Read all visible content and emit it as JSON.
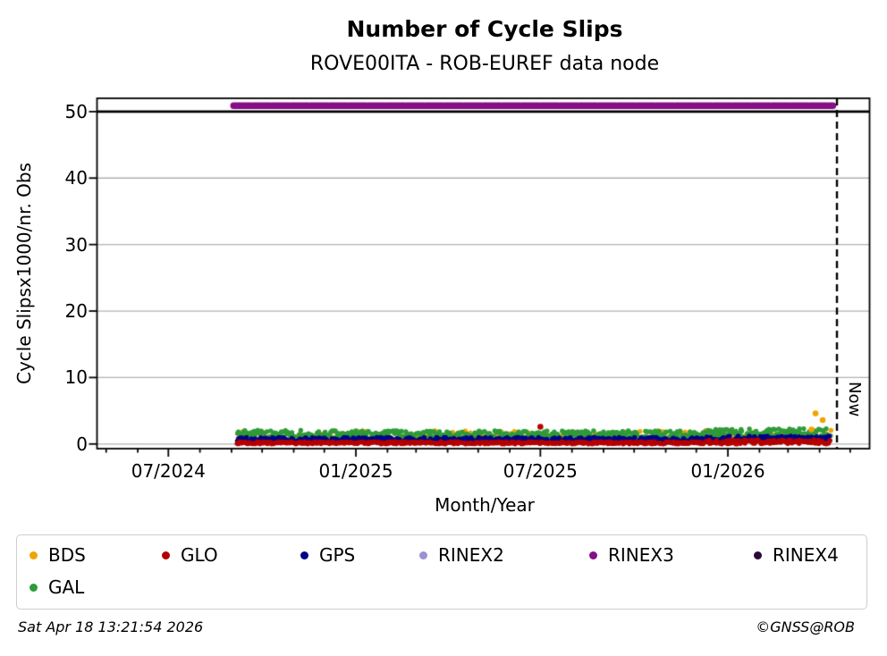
{
  "title": "Number of Cycle Slips",
  "subtitle": "ROVE00ITA - ROB-EUREF data node",
  "footer": {
    "timestamp": "Sat Apr 18 13:21:54 2026",
    "credit": "©GNSS@ROB"
  },
  "chart_data": {
    "type": "scatter",
    "title": "Number of Cycle Slips",
    "subtitle": "ROVE00ITA - ROB-EUREF data node",
    "xlabel": "Month/Year",
    "ylabel": "Cycle Slipsx1000/nr. Obs",
    "ylim": [
      -0.7,
      52
    ],
    "yticks": [
      0,
      10,
      20,
      30,
      40,
      50
    ],
    "xtick_dates": [
      "2024-07-01",
      "2025-01-01",
      "2025-07-01",
      "2026-01-01"
    ],
    "xtick_labels": [
      "07/2024",
      "01/2025",
      "07/2025",
      "01/2026"
    ],
    "x_range": {
      "start": "2024-04-22",
      "end": "2026-05-20"
    },
    "grid": "horizontal",
    "grid_color": "#b0b0b0",
    "threshold_line": {
      "value": 50,
      "color": "#000000"
    },
    "now_line": {
      "date": "2026-04-18",
      "label": "Now",
      "color": "#000000",
      "style": "dashed"
    },
    "legend_position": "bottom",
    "series": [
      {
        "name": "BDS",
        "color": "#efa400",
        "render": "band",
        "segments": [
          {
            "start": "2024-09-07",
            "end": "2025-12-10",
            "min": 0.9,
            "max": 2.0,
            "density": "sparse"
          },
          {
            "start": "2025-12-10",
            "end": "2026-04-12",
            "min": 0.9,
            "max": 2.1,
            "density": "sparse"
          }
        ],
        "outliers": [
          {
            "date": "2026-03-28",
            "value": 4.6
          },
          {
            "date": "2026-04-04",
            "value": 3.6
          },
          {
            "date": "2026-03-24",
            "value": 2.2
          }
        ]
      },
      {
        "name": "GLO",
        "color": "#b50000",
        "render": "band",
        "segments": [
          {
            "start": "2024-09-07",
            "end": "2025-12-10",
            "min": 0.0,
            "max": 0.35
          },
          {
            "start": "2025-12-10",
            "end": "2026-04-12",
            "min": 0.0,
            "max": 0.65
          }
        ],
        "outliers": [
          {
            "date": "2025-07-01",
            "value": 2.6
          }
        ]
      },
      {
        "name": "GPS",
        "color": "#000088",
        "render": "band",
        "segments": [
          {
            "start": "2024-09-07",
            "end": "2025-12-10",
            "min": 0.25,
            "max": 1.0
          },
          {
            "start": "2025-12-10",
            "end": "2026-04-12",
            "min": 0.3,
            "max": 1.2
          }
        ],
        "outliers": []
      },
      {
        "name": "RINEX2",
        "color": "#9b90d0",
        "render": "hidden"
      },
      {
        "name": "RINEX3",
        "color": "#860e86",
        "render": "line",
        "value": 50.9,
        "start": "2024-09-03",
        "end": "2026-04-14"
      },
      {
        "name": "RINEX4",
        "color": "#2d0936",
        "render": "hidden"
      },
      {
        "name": "GAL",
        "color": "#2e9b38",
        "render": "band",
        "segments": [
          {
            "start": "2024-09-07",
            "end": "2024-11-15",
            "min": 0.7,
            "max": 2.1,
            "spikes": 2.7
          },
          {
            "start": "2024-11-15",
            "end": "2025-12-10",
            "min": 0.7,
            "max": 2.0
          },
          {
            "start": "2025-12-10",
            "end": "2026-04-12",
            "min": 0.9,
            "max": 2.3
          }
        ],
        "outliers": []
      }
    ]
  }
}
